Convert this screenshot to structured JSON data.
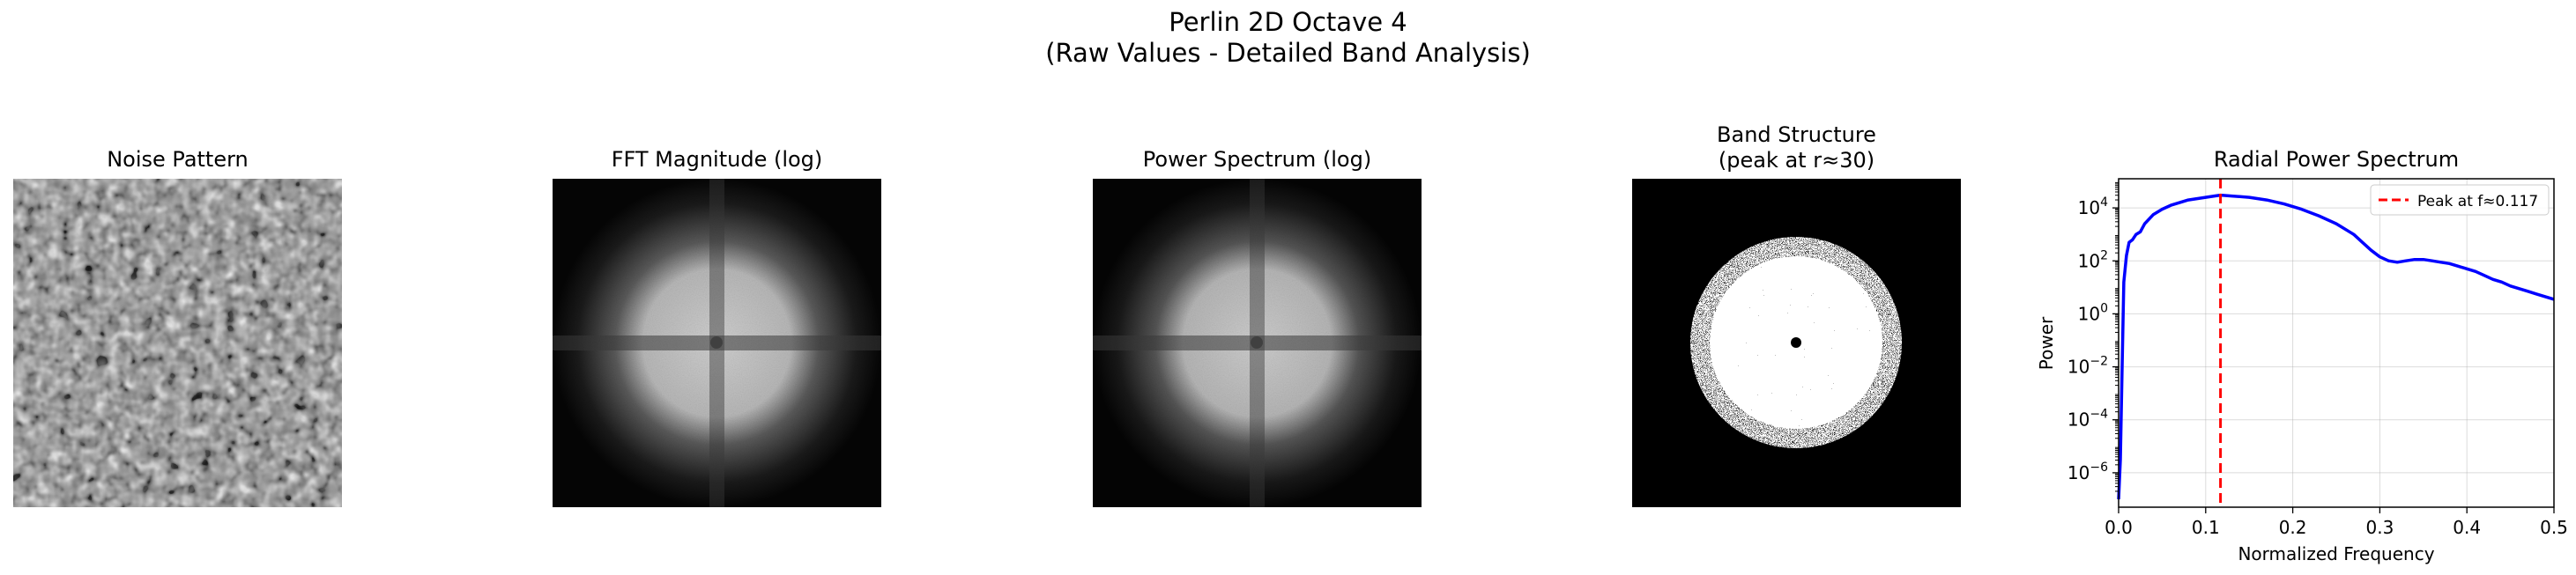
{
  "figure": {
    "title_line1": "Perlin 2D Octave 4",
    "title_line2": "(Raw Values - Detailed Band Analysis)"
  },
  "panels": {
    "noise": {
      "title": "Noise Pattern"
    },
    "fft": {
      "title": "FFT Magnitude (log)"
    },
    "power": {
      "title": "Power Spectrum (log)"
    },
    "band": {
      "title_line1": "Band Structure",
      "title_line2": "(peak at r≈30)"
    },
    "radial": {
      "title": "Radial Power Spectrum"
    }
  },
  "chart_data": {
    "type": "line",
    "title": "Radial Power Spectrum",
    "xlabel": "Normalized Frequency",
    "ylabel": "Power",
    "yscale": "log",
    "xlim": [
      0,
      0.5
    ],
    "ylim_log10": [
      -7.3,
      5.1
    ],
    "grid": true,
    "legend_position": "top-right",
    "x_ticks": [
      "0.0",
      "0.1",
      "0.2",
      "0.3",
      "0.4",
      "0.5"
    ],
    "y_ticks": [
      {
        "base": "10",
        "exp": "4",
        "log10": 4
      },
      {
        "base": "10",
        "exp": "2",
        "log10": 2
      },
      {
        "base": "10",
        "exp": "0",
        "log10": 0
      },
      {
        "base": "10",
        "exp": "−2",
        "log10": -2
      },
      {
        "base": "10",
        "exp": "−4",
        "log10": -4
      },
      {
        "base": "10",
        "exp": "−6",
        "log10": -6
      }
    ],
    "series": [
      {
        "color": "#0000ff",
        "points_log10": [
          [
            0.0,
            -7.0
          ],
          [
            0.002,
            -5.5
          ],
          [
            0.004,
            -2.0
          ],
          [
            0.006,
            1.2
          ],
          [
            0.009,
            2.2
          ],
          [
            0.012,
            2.7
          ],
          [
            0.016,
            2.8
          ],
          [
            0.02,
            3.0
          ],
          [
            0.025,
            3.1
          ],
          [
            0.03,
            3.4
          ],
          [
            0.04,
            3.75
          ],
          [
            0.05,
            3.95
          ],
          [
            0.06,
            4.1
          ],
          [
            0.07,
            4.2
          ],
          [
            0.08,
            4.3
          ],
          [
            0.09,
            4.35
          ],
          [
            0.1,
            4.4
          ],
          [
            0.11,
            4.45
          ],
          [
            0.117,
            4.48
          ],
          [
            0.13,
            4.45
          ],
          [
            0.15,
            4.4
          ],
          [
            0.17,
            4.3
          ],
          [
            0.19,
            4.15
          ],
          [
            0.21,
            3.95
          ],
          [
            0.23,
            3.7
          ],
          [
            0.25,
            3.4
          ],
          [
            0.27,
            3.0
          ],
          [
            0.28,
            2.7
          ],
          [
            0.29,
            2.4
          ],
          [
            0.3,
            2.15
          ],
          [
            0.31,
            2.0
          ],
          [
            0.32,
            1.95
          ],
          [
            0.33,
            2.0
          ],
          [
            0.34,
            2.05
          ],
          [
            0.35,
            2.05
          ],
          [
            0.36,
            2.0
          ],
          [
            0.37,
            1.95
          ],
          [
            0.38,
            1.9
          ],
          [
            0.39,
            1.8
          ],
          [
            0.4,
            1.7
          ],
          [
            0.41,
            1.6
          ],
          [
            0.42,
            1.45
          ],
          [
            0.43,
            1.3
          ],
          [
            0.44,
            1.2
          ],
          [
            0.45,
            1.05
          ],
          [
            0.46,
            0.95
          ],
          [
            0.47,
            0.85
          ],
          [
            0.48,
            0.75
          ],
          [
            0.49,
            0.65
          ],
          [
            0.5,
            0.55
          ]
        ]
      }
    ],
    "annotations": [
      {
        "type": "vline",
        "x": 0.117,
        "color": "#ff0000",
        "style": "dashed",
        "label": "Peak at f≈0.117"
      }
    ]
  }
}
